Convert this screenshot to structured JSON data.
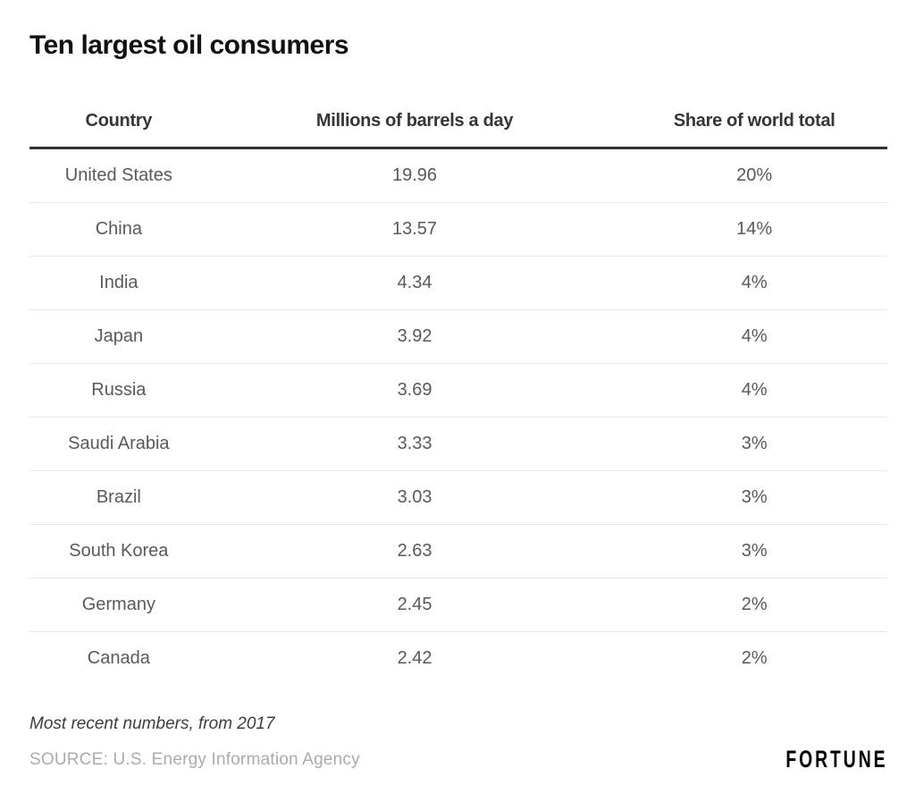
{
  "title": "Ten largest oil consumers",
  "chart_data": {
    "type": "table",
    "title": "Ten largest oil consumers",
    "columns": [
      "Country",
      "Millions of barrels a day",
      "Share of world total"
    ],
    "rows": [
      {
        "country": "United States",
        "barrels": "19.96",
        "share": "20%"
      },
      {
        "country": "China",
        "barrels": "13.57",
        "share": "14%"
      },
      {
        "country": "India",
        "barrels": "4.34",
        "share": "4%"
      },
      {
        "country": "Japan",
        "barrels": "3.92",
        "share": "4%"
      },
      {
        "country": "Russia",
        "barrels": "3.69",
        "share": "4%"
      },
      {
        "country": "Saudi Arabia",
        "barrels": "3.33",
        "share": "3%"
      },
      {
        "country": "Brazil",
        "barrels": "3.03",
        "share": "3%"
      },
      {
        "country": "South Korea",
        "barrels": "2.63",
        "share": "3%"
      },
      {
        "country": "Germany",
        "barrels": "2.45",
        "share": "2%"
      },
      {
        "country": "Canada",
        "barrels": "2.42",
        "share": "2%"
      }
    ],
    "note": "Most recent numbers, from 2017",
    "source": "SOURCE: U.S. Energy Information Agency"
  },
  "footer": {
    "brand": "FORTUNE"
  },
  "colors": {
    "title_text": "#111111",
    "header_text": "#363636",
    "data_text": "#595959",
    "header_rule": "#333333",
    "row_separator": "#e8e8e8",
    "note_text": "#3d3d3d",
    "source_text": "#ababab",
    "brand_text": "#000000",
    "background": "#ffffff"
  }
}
